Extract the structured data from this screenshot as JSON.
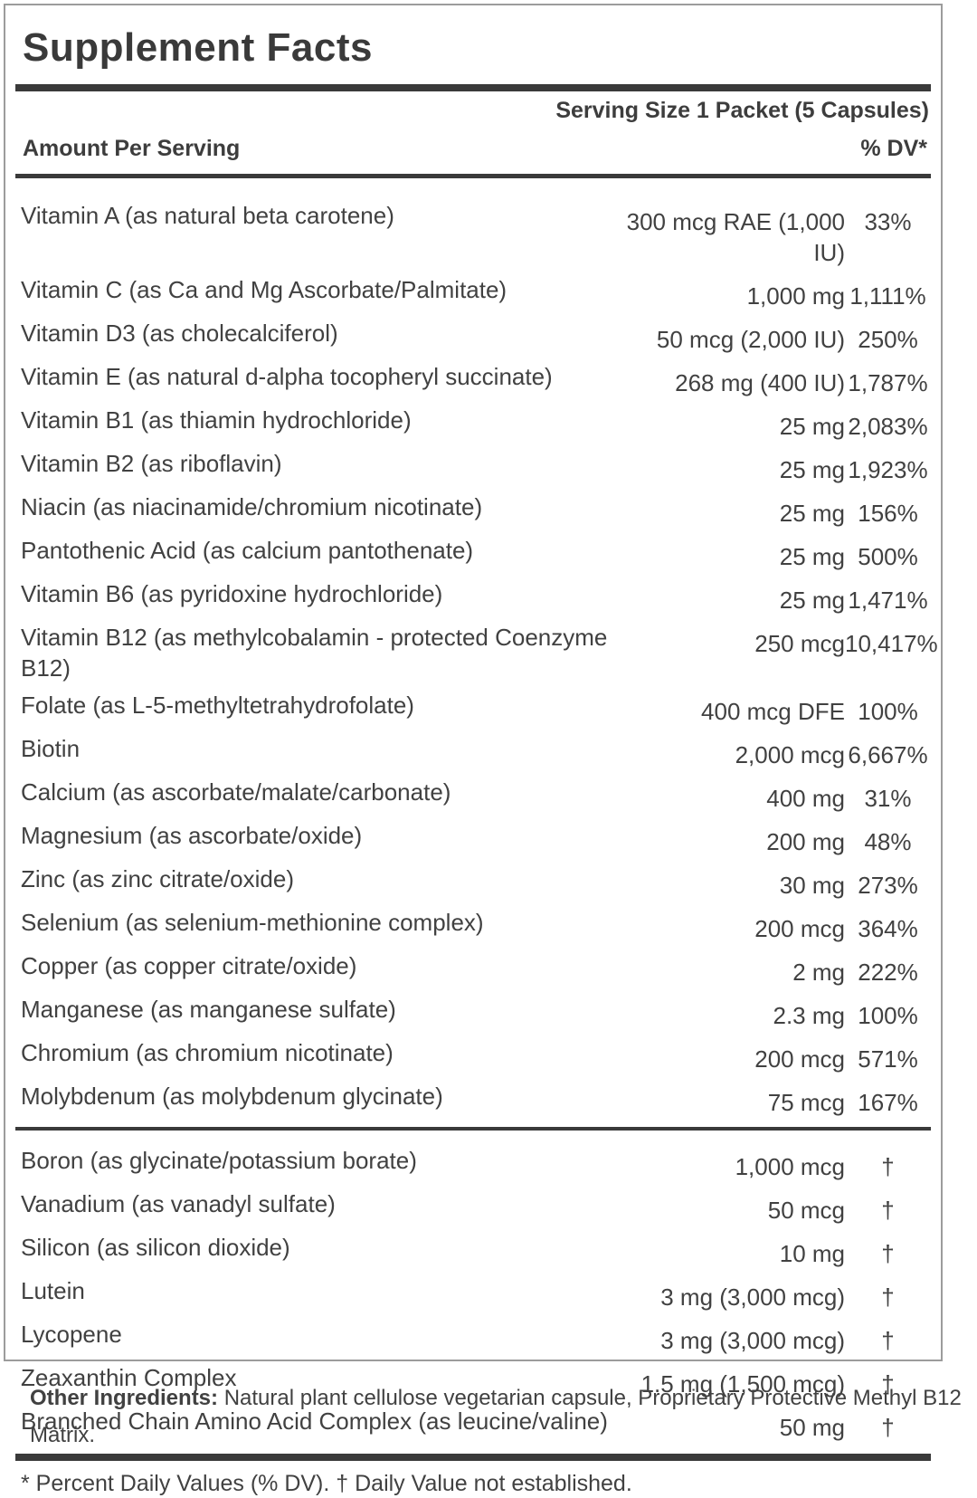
{
  "label": {
    "title": "Supplement Facts",
    "serving_size": "Serving Size 1 Packet (5 Capsules)",
    "header": {
      "amount_label": "Amount Per Serving",
      "dv_label": "% DV*"
    },
    "rows": [
      {
        "name": "Vitamin A (as natural beta carotene)",
        "amount": "300 mcg RAE (1,000 IU)",
        "dv": "33%"
      },
      {
        "name": "Vitamin C (as Ca and Mg Ascorbate/Palmitate)",
        "amount": "1,000 mg",
        "dv": "1,111%"
      },
      {
        "name": "Vitamin D3 (as cholecalciferol)",
        "amount": "50 mcg (2,000 IU)",
        "dv": "250%"
      },
      {
        "name": "Vitamin E (as natural d-alpha tocopheryl succinate)",
        "amount": "268 mg (400 IU)",
        "dv": "1,787%"
      },
      {
        "name": "Vitamin B1 (as thiamin hydrochloride)",
        "amount": "25 mg",
        "dv": "2,083%"
      },
      {
        "name": "Vitamin B2 (as riboflavin)",
        "amount": "25 mg",
        "dv": "1,923%"
      },
      {
        "name": "Niacin (as niacinamide/chromium nicotinate)",
        "amount": "25 mg",
        "dv": "156%"
      },
      {
        "name": "Pantothenic Acid (as calcium pantothenate)",
        "amount": "25 mg",
        "dv": "500%"
      },
      {
        "name": "Vitamin B6 (as pyridoxine hydrochloride)",
        "amount": "25 mg",
        "dv": "1,471%"
      },
      {
        "name": "Vitamin B12 (as methylcobalamin - protected Coenzyme B12)",
        "amount": "250 mcg",
        "dv": "10,417%"
      },
      {
        "name": "Folate (as L-5-methyltetrahydrofolate)",
        "amount": "400 mcg DFE",
        "dv": "100%"
      },
      {
        "name": "Biotin",
        "amount": "2,000 mcg",
        "dv": "6,667%"
      },
      {
        "name": "Calcium (as ascorbate/malate/carbonate)",
        "amount": "400 mg",
        "dv": "31%"
      },
      {
        "name": "Magnesium (as ascorbate/oxide)",
        "amount": "200 mg",
        "dv": "48%"
      },
      {
        "name": "Zinc (as zinc citrate/oxide)",
        "amount": "30 mg",
        "dv": "273%"
      },
      {
        "name": "Selenium (as selenium-methionine complex)",
        "amount": "200 mcg",
        "dv": "364%"
      },
      {
        "name": "Copper (as copper citrate/oxide)",
        "amount": "2 mg",
        "dv": "222%"
      },
      {
        "name": "Manganese (as manganese sulfate)",
        "amount": "2.3 mg",
        "dv": "100%"
      },
      {
        "name": "Chromium (as chromium nicotinate)",
        "amount": "200 mcg",
        "dv": "571%"
      },
      {
        "name": "Molybdenum (as molybdenum glycinate)",
        "amount": "75 mcg",
        "dv": "167%",
        "divider_after": true
      },
      {
        "name": "Boron (as glycinate/potassium borate)",
        "amount": "1,000 mcg",
        "dv": "†"
      },
      {
        "name": "Vanadium (as vanadyl sulfate)",
        "amount": "50 mcg",
        "dv": "†"
      },
      {
        "name": "Silicon (as silicon dioxide)",
        "amount": "10 mg",
        "dv": "†"
      },
      {
        "name": "Lutein",
        "amount": "3 mg (3,000 mcg)",
        "dv": "†"
      },
      {
        "name": "Lycopene",
        "amount": "3 mg (3,000 mcg)",
        "dv": "†"
      },
      {
        "name": "Zeaxanthin Complex",
        "amount": "1.5 mg (1,500 mcg)",
        "dv": "†"
      },
      {
        "name": "Branched Chain Amino Acid Complex (as leucine/valine)",
        "amount": "50 mg",
        "dv": "†"
      }
    ],
    "footnote": "* Percent Daily Values (% DV). † Daily Value not established.",
    "other_ingredients": {
      "label": "Other Ingredients:",
      "text": " Natural plant cellulose vegetarian capsule, Proprietary Protective Methyl B12 Matrix."
    },
    "colors": {
      "text": "#414141",
      "heading": "#3a3a3a",
      "bar": "#3a3a3a",
      "panel_border": "#9c9c9c",
      "background": "#ffffff"
    }
  }
}
